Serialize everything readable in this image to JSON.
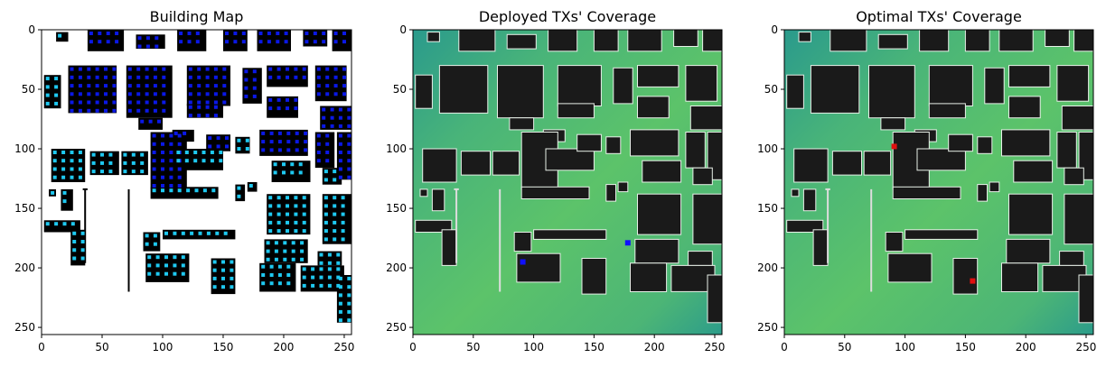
{
  "figure": {
    "panels": [
      {
        "id": "building",
        "title": "Building Map"
      },
      {
        "id": "deployed",
        "title": "Deployed TXs' Coverage"
      },
      {
        "id": "optimal",
        "title": "Optimal TXs' Coverage"
      }
    ]
  },
  "chart_data": [
    {
      "type": "heatmap",
      "title": "Building Map",
      "xlabel": "",
      "ylabel": "",
      "xlim": [
        0,
        256
      ],
      "ylim": [
        256,
        0
      ],
      "x_ticks": [
        0,
        50,
        100,
        150,
        200,
        250
      ],
      "y_ticks": [
        0,
        50,
        100,
        150,
        200,
        250
      ],
      "grid": false,
      "colors": {
        "background": "#ffffff",
        "building": "#000000",
        "candidate_dark": "#0a18e6",
        "candidate_light": "#1ec8f0"
      }
    },
    {
      "type": "heatmap",
      "title": "Deployed TXs' Coverage",
      "xlabel": "",
      "ylabel": "",
      "xlim": [
        0,
        256
      ],
      "ylim": [
        256,
        0
      ],
      "x_ticks": [
        0,
        50,
        100,
        150,
        200,
        250
      ],
      "y_ticks": [
        0,
        50,
        100,
        150,
        200,
        250
      ],
      "grid": false,
      "transmitters": [
        {
          "x": 91,
          "y": 195
        },
        {
          "x": 178,
          "y": 179
        }
      ],
      "colors": {
        "coverage_low": "#2a9a8c",
        "coverage_high": "#5cc36a",
        "building": "#1a1a1a",
        "transmitter": "#1010ff"
      }
    },
    {
      "type": "heatmap",
      "title": "Optimal TXs' Coverage",
      "xlabel": "",
      "ylabel": "",
      "xlim": [
        0,
        256
      ],
      "ylim": [
        256,
        0
      ],
      "x_ticks": [
        0,
        50,
        100,
        150,
        200,
        250
      ],
      "y_ticks": [
        0,
        50,
        100,
        150,
        200,
        250
      ],
      "grid": false,
      "transmitters": [
        {
          "x": 91,
          "y": 98
        },
        {
          "x": 156,
          "y": 211
        }
      ],
      "colors": {
        "coverage_low": "#2a9a8c",
        "coverage_high": "#5cc36a",
        "building": "#1a1a1a",
        "transmitter": "#e01010"
      }
    }
  ]
}
